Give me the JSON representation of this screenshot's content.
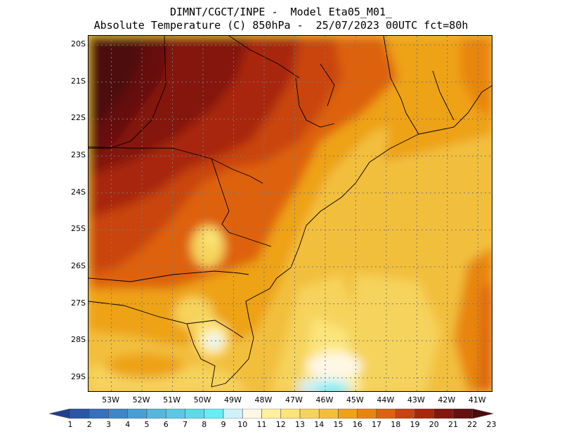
{
  "header": {
    "title_line1": "DIMNT/CGCT/INPE -  Model Eta05_M01_",
    "title_line2": "Absolute Temperature (C) 850hPa -  25/07/2023 00UTC fct=80h"
  },
  "map": {
    "latitude_labels": [
      "20S",
      "21S",
      "22S",
      "23S",
      "24S",
      "25S",
      "26S",
      "27S",
      "28S",
      "29S"
    ],
    "longitude_labels": [
      "53W",
      "52W",
      "51W",
      "50W",
      "49W",
      "48W",
      "47W",
      "46W",
      "45W",
      "44W",
      "43W",
      "42W",
      "41W"
    ],
    "lon_range": [
      -53.75,
      -40.5
    ],
    "lat_range": [
      -29.4,
      -19.75
    ]
  },
  "colorbar": {
    "labels": [
      "1",
      "2",
      "3",
      "4",
      "5",
      "6",
      "7",
      "8",
      "9",
      "10",
      "11",
      "12",
      "13",
      "14",
      "15",
      "16",
      "17",
      "18",
      "19",
      "20",
      "21",
      "22",
      "23"
    ],
    "colors": [
      "#1f3f8f",
      "#2b57a6",
      "#3a6fbd",
      "#3f86c9",
      "#47a0d2",
      "#55b7dc",
      "#5ac8e1",
      "#5fd9e6",
      "#66eef4",
      "#cdf2fa",
      "#fff7e6",
      "#fff0a0",
      "#fbe47a",
      "#f6d35c",
      "#f2bf3d",
      "#eea218",
      "#e88510",
      "#de620d",
      "#c94410",
      "#a8280e",
      "#84170e",
      "#661010",
      "#4d0b0b"
    ]
  }
}
